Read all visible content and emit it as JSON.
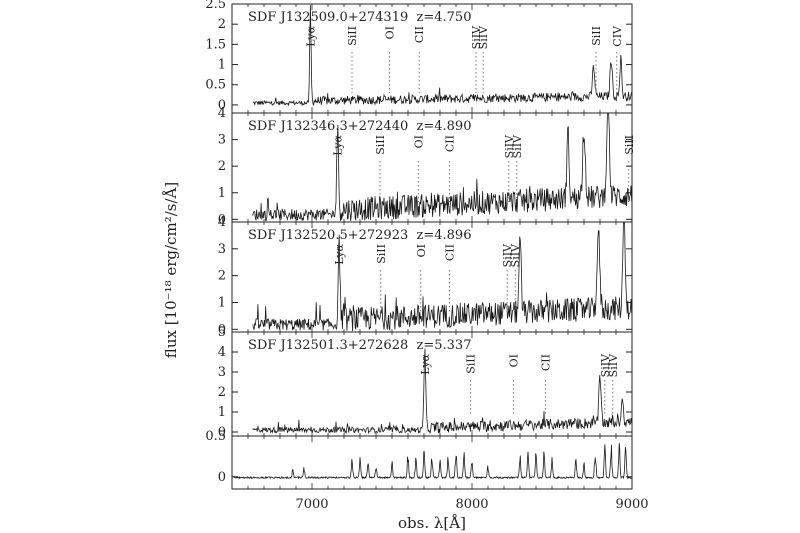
{
  "chart_data": {
    "type": "line",
    "xlabel": "obs. λ[Å]",
    "ylabel": "flux [10⁻¹⁸ erg/cm²/s/Å]",
    "xlim": [
      6500,
      9000
    ],
    "x_ticks": [
      "7000",
      "8000",
      "9000"
    ],
    "panels": [
      {
        "title": "SDF J132509.0+274319  z=4.750",
        "ylim": [
          -0.2,
          2.5
        ],
        "y_ticks": [
          "0",
          "0.5",
          "1",
          "1.5",
          "2",
          "2.5"
        ],
        "lines": [
          {
            "label": "Lyα",
            "wavelength": 6990,
            "marker": false
          },
          {
            "label": "SiII",
            "wavelength": 7250,
            "marker": true
          },
          {
            "label": "OI",
            "wavelength": 7485,
            "marker": true
          },
          {
            "label": "CII",
            "wavelength": 7670,
            "marker": true
          },
          {
            "label": "SiIV",
            "wavelength": 8025,
            "marker": true
          },
          {
            "label": "SiIV",
            "wavelength": 8070,
            "marker": true
          },
          {
            "label": "SiII",
            "wavelength": 8775,
            "marker": true
          },
          {
            "label": "CIV",
            "wavelength": 8905,
            "marker": true
          }
        ],
        "features": [
          [
            6990,
            2.35,
            6
          ],
          [
            8760,
            0.75,
            10
          ],
          [
            8870,
            0.9,
            10
          ],
          [
            8930,
            1.0,
            8
          ]
        ],
        "noise": 0.11,
        "cont_left": 0.1,
        "cont_right": 0.22,
        "jump": 6985
      },
      {
        "title": "SDF J132346.3+272440  z=4.890",
        "ylim": [
          -0.1,
          4
        ],
        "y_ticks": [
          "0",
          "1",
          "2",
          "3",
          "4"
        ],
        "lines": [
          {
            "label": "Lyα",
            "wavelength": 7160,
            "marker": false
          },
          {
            "label": "SiII",
            "wavelength": 7425,
            "marker": true
          },
          {
            "label": "OI",
            "wavelength": 7665,
            "marker": true
          },
          {
            "label": "CII",
            "wavelength": 7860,
            "marker": true
          },
          {
            "label": "SiIV",
            "wavelength": 8230,
            "marker": true
          },
          {
            "label": "SiIV",
            "wavelength": 8280,
            "marker": true
          },
          {
            "label": "SiII",
            "wavelength": 8980,
            "marker": true
          }
        ],
        "features": [
          [
            7160,
            3.0,
            8
          ],
          [
            8850,
            3.5,
            12
          ],
          [
            8700,
            2.6,
            12
          ],
          [
            8600,
            2.4,
            10
          ]
        ],
        "noise": 0.45,
        "cont_left": 0.35,
        "cont_right": 0.9,
        "jump": 7150
      },
      {
        "title": "SDF J132520.5+272923  z=4.896",
        "ylim": [
          -0.1,
          4
        ],
        "y_ticks": [
          "0",
          "1",
          "2",
          "3",
          "4"
        ],
        "lines": [
          {
            "label": "Lyα",
            "wavelength": 7170,
            "marker": false
          },
          {
            "label": "SiII",
            "wavelength": 7430,
            "marker": true
          },
          {
            "label": "OI",
            "wavelength": 7680,
            "marker": true
          },
          {
            "label": "CII",
            "wavelength": 7860,
            "marker": true
          },
          {
            "label": "SiIV",
            "wavelength": 8220,
            "marker": true
          },
          {
            "label": "SiIV",
            "wavelength": 8270,
            "marker": true
          }
        ],
        "features": [
          [
            7170,
            2.8,
            8
          ],
          [
            8300,
            2.6,
            10
          ],
          [
            8790,
            2.8,
            12
          ],
          [
            8950,
            3.7,
            10
          ]
        ],
        "noise": 0.45,
        "cont_left": 0.35,
        "cont_right": 0.8,
        "jump": 7160
      },
      {
        "title": "SDF J132501.3+272628  z=5.337",
        "ylim": [
          -0.2,
          5
        ],
        "y_ticks": [
          "0",
          "1",
          "2",
          "3",
          "4",
          "5"
        ],
        "lines": [
          {
            "label": "Lyα",
            "wavelength": 7705,
            "marker": false
          },
          {
            "label": "SiII",
            "wavelength": 7990,
            "marker": true
          },
          {
            "label": "OI",
            "wavelength": 8260,
            "marker": true
          },
          {
            "label": "CII",
            "wavelength": 8460,
            "marker": true
          },
          {
            "label": "SiIV",
            "wavelength": 8830,
            "marker": true
          },
          {
            "label": "SiIV",
            "wavelength": 8880,
            "marker": true
          }
        ],
        "features": [
          [
            7705,
            3.8,
            8
          ],
          [
            8800,
            2.2,
            10
          ],
          [
            8940,
            1.4,
            8
          ]
        ],
        "noise": 0.28,
        "cont_left": 0.2,
        "cont_right": 0.5,
        "jump": 7700
      },
      {
        "title": "",
        "ylim": [
          -0.15,
          0.5
        ],
        "y_ticks": [
          "0",
          "0.5"
        ],
        "lines": [],
        "features": [],
        "sky": true
      }
    ]
  }
}
